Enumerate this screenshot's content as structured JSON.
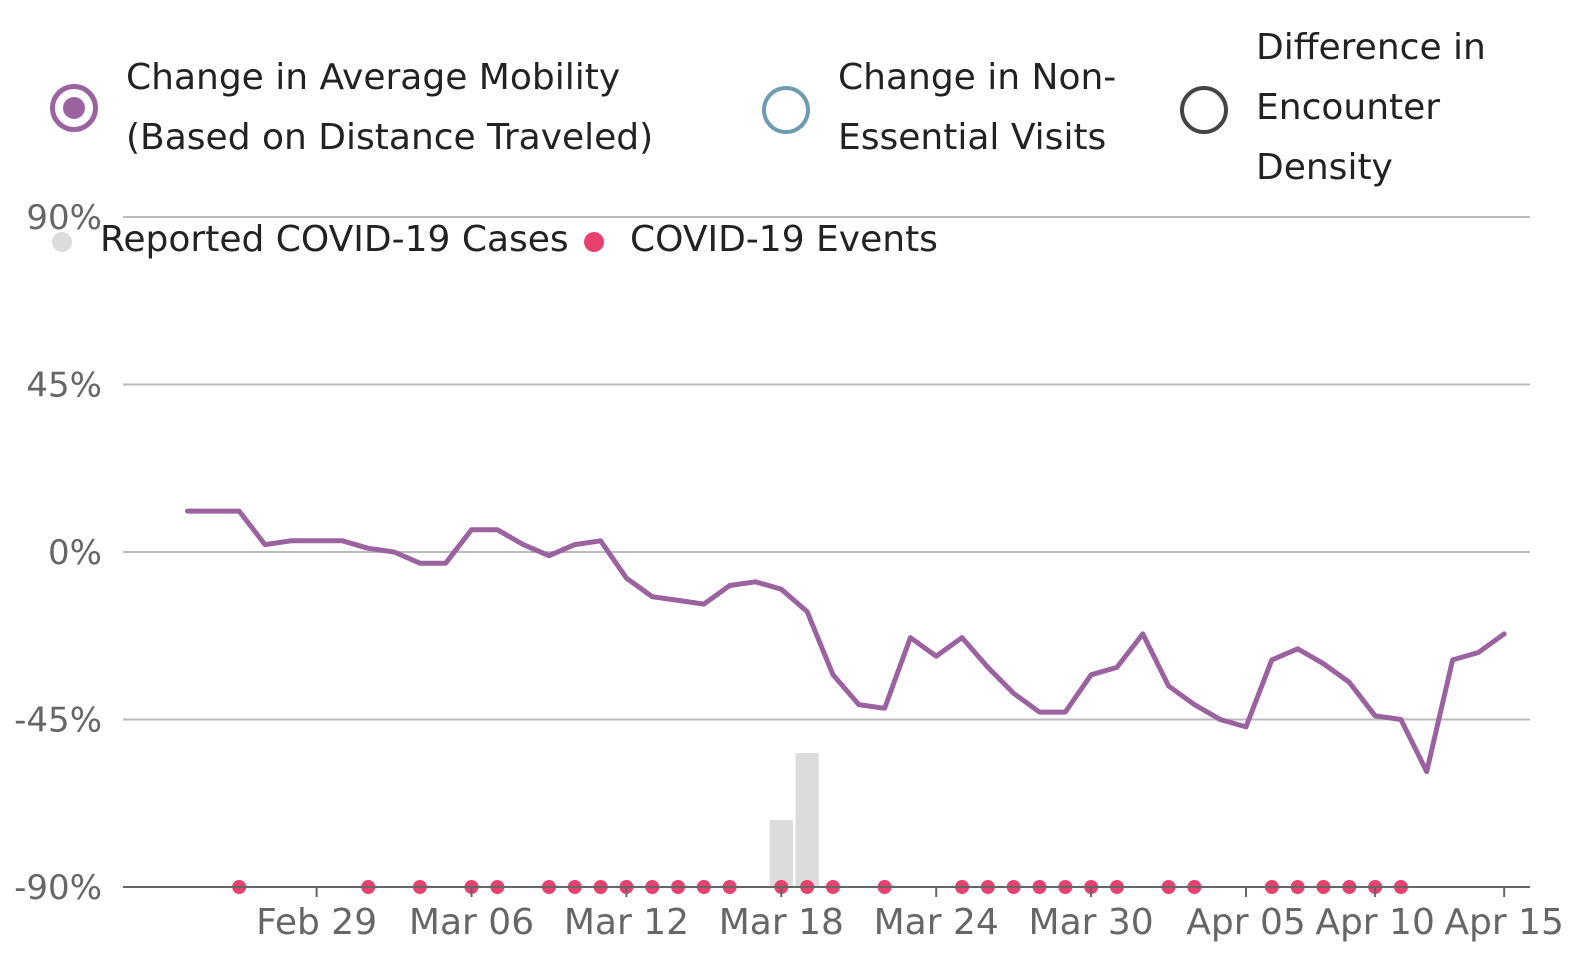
{
  "legend": {
    "mobility": {
      "label_line1": "Change in Average Mobility",
      "label_line2": "(Based on Distance Traveled)"
    },
    "nonessential": {
      "label_line1": "Change in Non-",
      "label_line2": "Essential Visits"
    },
    "encounter": {
      "label_line1": "Difference in",
      "label_line2": "Encounter",
      "label_line3": "Density"
    },
    "cases": {
      "label": "Reported COVID-19 Cases"
    },
    "events": {
      "label": "COVID-19 Events"
    }
  },
  "colors": {
    "mobility": "#9b62a0",
    "nonessential": "#6d9cb0",
    "encounter": "#444444",
    "cases": "#dcdcdc",
    "events": "#e8416e",
    "grid": "#bbbbbb",
    "axis": "#666666"
  },
  "chart_data": {
    "type": "line",
    "title": "",
    "xlabel": "",
    "ylabel": "",
    "ylim": [
      -90,
      90
    ],
    "y_ticks": [
      "90%",
      "45%",
      "0%",
      "-45%",
      "-90%"
    ],
    "y_tick_values": [
      90,
      45,
      0,
      -45,
      -90
    ],
    "x_tick_labels": [
      "Feb 29",
      "Mar 06",
      "Mar 12",
      "Mar 18",
      "Mar 24",
      "Mar 30",
      "Apr 05",
      "Apr 10",
      "Apr 15"
    ],
    "x_tick_days": [
      14,
      20,
      26,
      32,
      38,
      44,
      50,
      55,
      60
    ],
    "x_range_days": [
      6.5,
      61
    ],
    "series": [
      {
        "name": "Change in Average Mobility (Based on Distance Traveled)",
        "start_day": 9,
        "values": [
          11,
          11,
          11,
          2,
          3,
          3,
          3,
          1,
          0,
          -3,
          -3,
          6,
          6,
          2,
          -1,
          2,
          3,
          -7,
          -12,
          -13,
          -14,
          -9,
          -8,
          -10,
          -16,
          -33,
          -41,
          -42,
          -23,
          -28,
          -23,
          -31,
          -38,
          -43,
          -43,
          -33,
          -31,
          -22,
          -36,
          -41,
          -45,
          -47,
          -29,
          -26,
          -30,
          -35,
          -44,
          -45,
          -59,
          -29,
          -27,
          -22
        ]
      }
    ],
    "cases_bars": [
      {
        "day": 32,
        "value": -72
      },
      {
        "day": 33,
        "value": -54
      }
    ],
    "event_days": [
      11,
      16,
      18,
      20,
      21,
      23,
      24,
      25,
      26,
      27,
      28,
      29,
      30,
      32,
      33,
      34,
      36,
      39,
      40,
      41,
      42,
      43,
      44,
      45,
      47,
      48,
      51,
      52,
      53,
      54,
      55,
      56
    ]
  }
}
